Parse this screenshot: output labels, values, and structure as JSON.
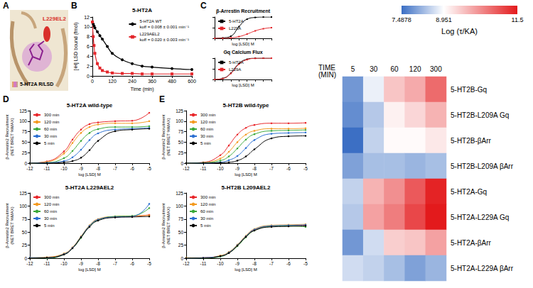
{
  "chart_data": [
    {
      "panel": "A",
      "type": "image",
      "labels": [
        "L229EL2",
        "5-HT2A R/LSD"
      ]
    },
    {
      "panel": "B",
      "type": "line",
      "title": "5-HT2A",
      "xlabel": "Time (min)",
      "ylabel": "[³H] LSD bound (fmol)",
      "x": [
        0,
        5,
        10,
        15,
        30,
        45,
        60,
        90,
        120,
        180,
        240,
        300,
        360,
        480,
        600
      ],
      "xlim": [
        0,
        600
      ],
      "xticks": [
        0,
        120,
        240,
        360,
        480,
        600
      ],
      "ylim": [
        0,
        12
      ],
      "yticks": [
        0,
        2,
        4,
        6,
        8,
        10,
        12
      ],
      "grid": false,
      "legend": "upper right",
      "series": [
        {
          "name": "5-HT2A WT",
          "annotation": "koff = 0.008 ± 0.001 min⁻¹",
          "color": "#000000",
          "marker": "circle",
          "values": [
            11,
            10.6,
            10.2,
            9.8,
            9,
            8.2,
            7.5,
            6,
            4.6,
            3.3,
            2.5,
            2,
            1.8,
            1.5,
            1.3
          ]
        },
        {
          "name": "L229AEL2",
          "annotation": "koff = 0.020 ± 0.003 min⁻¹",
          "color": "#e3262b",
          "marker": "square",
          "values": [
            11,
            8,
            6.2,
            4.6,
            2.5,
            1.6,
            1.1,
            0.8,
            0.6,
            0.5,
            0.5,
            0.4,
            0.4,
            0.4,
            0.4
          ]
        }
      ]
    },
    {
      "panel": "C",
      "type": "line",
      "title": "β-Arrestin Recruitment",
      "xlabel": "log [LSD] M",
      "x": [
        -12,
        -11,
        -10,
        -9,
        -8,
        -7,
        -6,
        -5
      ],
      "xlim": [
        -12,
        -5
      ],
      "xticks": [
        -12,
        -11,
        -10,
        -9,
        -8,
        -7,
        -6,
        -5
      ],
      "ylim": [
        0,
        100
      ],
      "yticks": [
        0,
        50,
        100
      ],
      "grid": false,
      "legend": "upper left",
      "tick_labels": false,
      "series": [
        {
          "name": "5-HT2A",
          "color": "#000000",
          "marker": "square",
          "values": [
            0,
            2,
            10,
            55,
            90,
            98,
            100,
            100
          ]
        },
        {
          "name": "L229A",
          "color": "#e3262b",
          "marker": "square",
          "values": [
            0,
            0,
            2,
            8,
            20,
            35,
            45,
            50
          ]
        }
      ]
    },
    {
      "type": "line",
      "title": "Gq Calcium Flux",
      "xlabel": "log [LSD] M",
      "x": [
        -12,
        -11,
        -10,
        -9,
        -8,
        -7,
        -6,
        -5
      ],
      "xlim": [
        -12,
        -5
      ],
      "xticks": [
        -12,
        -11,
        -10,
        -9,
        -8,
        -7,
        -6,
        -5
      ],
      "ylim": [
        0,
        100
      ],
      "yticks": [
        0,
        50,
        100
      ],
      "grid": false,
      "legend": "upper left",
      "tick_labels": false,
      "series": [
        {
          "name": "5-HT2A",
          "color": "#000000",
          "marker": "square",
          "values": [
            0,
            5,
            30,
            75,
            95,
            100,
            100,
            100
          ]
        },
        {
          "name": "L229A",
          "color": "#e3262b",
          "marker": "square",
          "values": [
            0,
            4,
            28,
            72,
            93,
            99,
            100,
            100
          ]
        }
      ]
    },
    {
      "panel": "D",
      "type": "line",
      "title": "5-HT2A wild-type",
      "xlabel": "log [LSD] M",
      "ylabel": "β-Arrestin2 Recruitment (NET BRET %MAX)",
      "x": [
        -12,
        -11,
        -10,
        -9.5,
        -9,
        -8.5,
        -8,
        -7,
        -6,
        -5
      ],
      "xlim": [
        -12,
        -5
      ],
      "xticks": [
        -12,
        -11,
        -10,
        -9,
        -8,
        -7,
        -6,
        -5
      ],
      "ylim": [
        0,
        125
      ],
      "yticks": [
        0,
        25,
        50,
        75,
        100,
        125
      ],
      "grid": false,
      "legend": "upper left",
      "series": [
        {
          "name": "300 min",
          "color": "#e8262a",
          "marker": "circle",
          "values": [
            0,
            4,
            28,
            56,
            80,
            93,
            97,
            100,
            101,
            120
          ]
        },
        {
          "name": "120 min",
          "color": "#f39a1f",
          "marker": "circle",
          "values": [
            0,
            3,
            23,
            48,
            72,
            86,
            92,
            95,
            95,
            100
          ]
        },
        {
          "name": "60 min",
          "color": "#3aa83a",
          "marker": "circle",
          "values": [
            0,
            1,
            12,
            29,
            53,
            72,
            81,
            86,
            86,
            88
          ]
        },
        {
          "name": "30 min",
          "color": "#2b6fd1",
          "marker": "circle",
          "values": [
            0,
            1,
            5,
            14,
            32,
            55,
            71,
            80,
            82,
            84
          ]
        },
        {
          "name": "5 min",
          "color": "#000000",
          "marker": "circle",
          "values": [
            0,
            0,
            2,
            5,
            13,
            31,
            53,
            76,
            80,
            82
          ]
        }
      ]
    },
    {
      "type": "line",
      "title": "5-HT2A L229AEL2",
      "xlabel": "log [LSD] M",
      "ylabel": "β-Arrestin2 Recruitment (NET BRET %MAX)",
      "x": [
        -12,
        -11,
        -10,
        -9.5,
        -9,
        -8.5,
        -8,
        -7,
        -6,
        -5
      ],
      "xlim": [
        -12,
        -5
      ],
      "xticks": [
        -12,
        -11,
        -10,
        -9,
        -8,
        -7,
        -6,
        -5
      ],
      "ylim": [
        0,
        125
      ],
      "yticks": [
        0,
        25,
        50,
        75,
        100,
        125
      ],
      "grid": false,
      "legend": "upper left",
      "series": [
        {
          "name": "300 min",
          "color": "#e8262a",
          "marker": "circle",
          "values": [
            0,
            1,
            8,
            20,
            40,
            62,
            74,
            79,
            80,
            83
          ]
        },
        {
          "name": "120 min",
          "color": "#f39a1f",
          "marker": "circle",
          "values": [
            1,
            2,
            9,
            21,
            42,
            63,
            75,
            80,
            81,
            82
          ]
        },
        {
          "name": "60 min",
          "color": "#3aa83a",
          "marker": "circle",
          "values": [
            0,
            0,
            7,
            19,
            39,
            61,
            73,
            80,
            81,
            96
          ]
        },
        {
          "name": "30 min",
          "color": "#2b6fd1",
          "marker": "circle",
          "values": [
            1,
            1,
            8,
            20,
            41,
            62,
            74,
            79,
            80,
            104
          ]
        },
        {
          "name": "5 min",
          "color": "#000000",
          "marker": "circle",
          "values": [
            0,
            1,
            7,
            19,
            40,
            60,
            72,
            78,
            79,
            80
          ]
        }
      ]
    },
    {
      "panel": "E",
      "type": "line",
      "title": "5-HT2B wild-type",
      "xlabel": "log [LSD] M",
      "ylabel": "β-Arrestin2 Recruitment (NET BRET %MAX)",
      "x": [
        -12,
        -11,
        -10,
        -9.5,
        -9,
        -8.5,
        -8,
        -7,
        -6,
        -5
      ],
      "xlim": [
        -12,
        -5
      ],
      "xticks": [
        -12,
        -11,
        -10,
        -9,
        -8,
        -7,
        -6,
        -5
      ],
      "ylim": [
        0,
        125
      ],
      "yticks": [
        0,
        25,
        50,
        75,
        100,
        125
      ],
      "grid": false,
      "legend": "upper left",
      "series": [
        {
          "name": "300 min",
          "color": "#e8262a",
          "marker": "circle",
          "values": [
            0,
            2,
            19,
            42,
            68,
            84,
            91,
            95,
            95,
            96
          ]
        },
        {
          "name": "120 min",
          "color": "#f39a1f",
          "marker": "circle",
          "values": [
            0,
            1,
            11,
            27,
            50,
            68,
            77,
            82,
            82,
            83
          ]
        },
        {
          "name": "60 min",
          "color": "#3aa83a",
          "marker": "circle",
          "values": [
            0,
            1,
            6,
            16,
            35,
            56,
            69,
            77,
            78,
            79
          ]
        },
        {
          "name": "30 min",
          "color": "#2b6fd1",
          "marker": "circle",
          "values": [
            0,
            0,
            2,
            7,
            17,
            36,
            55,
            70,
            72,
            73
          ]
        },
        {
          "name": "5 min",
          "color": "#000000",
          "marker": "circle",
          "values": [
            0,
            0,
            1,
            2,
            6,
            16,
            33,
            59,
            64,
            65
          ]
        }
      ]
    },
    {
      "type": "line",
      "title": "5-HT2B L209AEL2",
      "xlabel": "log [LSD] M",
      "ylabel": "β-Arrestin2 Recruitment (NET BRET %MAX)",
      "x": [
        -12,
        -11,
        -10,
        -9.5,
        -9,
        -8.5,
        -8,
        -7,
        -6,
        -5
      ],
      "xlim": [
        -12,
        -5
      ],
      "xticks": [
        -12,
        -11,
        -10,
        -9,
        -8,
        -7,
        -6,
        -5
      ],
      "ylim": [
        0,
        125
      ],
      "yticks": [
        0,
        25,
        50,
        75,
        100,
        125
      ],
      "grid": false,
      "legend": "upper left",
      "series": [
        {
          "name": "300 min",
          "color": "#e8262a",
          "marker": "circle",
          "values": [
            0,
            1,
            4,
            10,
            24,
            41,
            54,
            61,
            62,
            63
          ]
        },
        {
          "name": "120 min",
          "color": "#f39a1f",
          "marker": "circle",
          "values": [
            1,
            1,
            5,
            12,
            26,
            43,
            56,
            63,
            64,
            65
          ]
        },
        {
          "name": "60 min",
          "color": "#3aa83a",
          "marker": "circle",
          "values": [
            0,
            0,
            3,
            10,
            23,
            40,
            53,
            61,
            62,
            60
          ]
        },
        {
          "name": "30 min",
          "color": "#2b6fd1",
          "marker": "circle",
          "values": [
            0,
            1,
            4,
            11,
            25,
            42,
            55,
            62,
            63,
            64
          ]
        },
        {
          "name": "5 min",
          "color": "#000000",
          "marker": "circle",
          "values": [
            0,
            0,
            4,
            10,
            24,
            41,
            53,
            60,
            61,
            62
          ]
        }
      ]
    },
    {
      "type": "heatmap",
      "xlabel": "TIME (MIN)",
      "categories": [
        "5",
        "30",
        "60",
        "120",
        "300"
      ],
      "rows": [
        "5-HT2B-Gq",
        "5-HT2B-L209A Gq",
        "5-HT2B-βArr",
        "5-HT2B-L209A βArr",
        "5-HT2A-Gq",
        "5-HT2A-L229A Gq",
        "5-HT2A-βArr",
        "5-HT2A-L229A βArr"
      ],
      "cells": [
        [
          7.9,
          8.8,
          9.6,
          9.9,
          10.6
        ],
        [
          7.8,
          8.4,
          9.1,
          9.4,
          9.8
        ],
        [
          7.5,
          8.5,
          9.0,
          9.0,
          9.2
        ],
        [
          8.0,
          8.3,
          8.3,
          8.2,
          8.3
        ],
        [
          8.5,
          9.8,
          10.2,
          10.8,
          11.4
        ],
        [
          8.4,
          10.0,
          10.4,
          11.0,
          11.5
        ],
        [
          7.9,
          8.6,
          9.5,
          9.6,
          10.0
        ],
        [
          8.6,
          8.5,
          8.3,
          8.0,
          8.2
        ]
      ],
      "colorbar": {
        "label": "Log (τ/KA)",
        "range": [
          7.4878,
          11.5
        ],
        "ticks": [
          7.4878,
          8.951,
          11.5
        ],
        "colors": [
          "#3a6ec4",
          "#ffffff",
          "#e31a1c"
        ]
      }
    }
  ]
}
